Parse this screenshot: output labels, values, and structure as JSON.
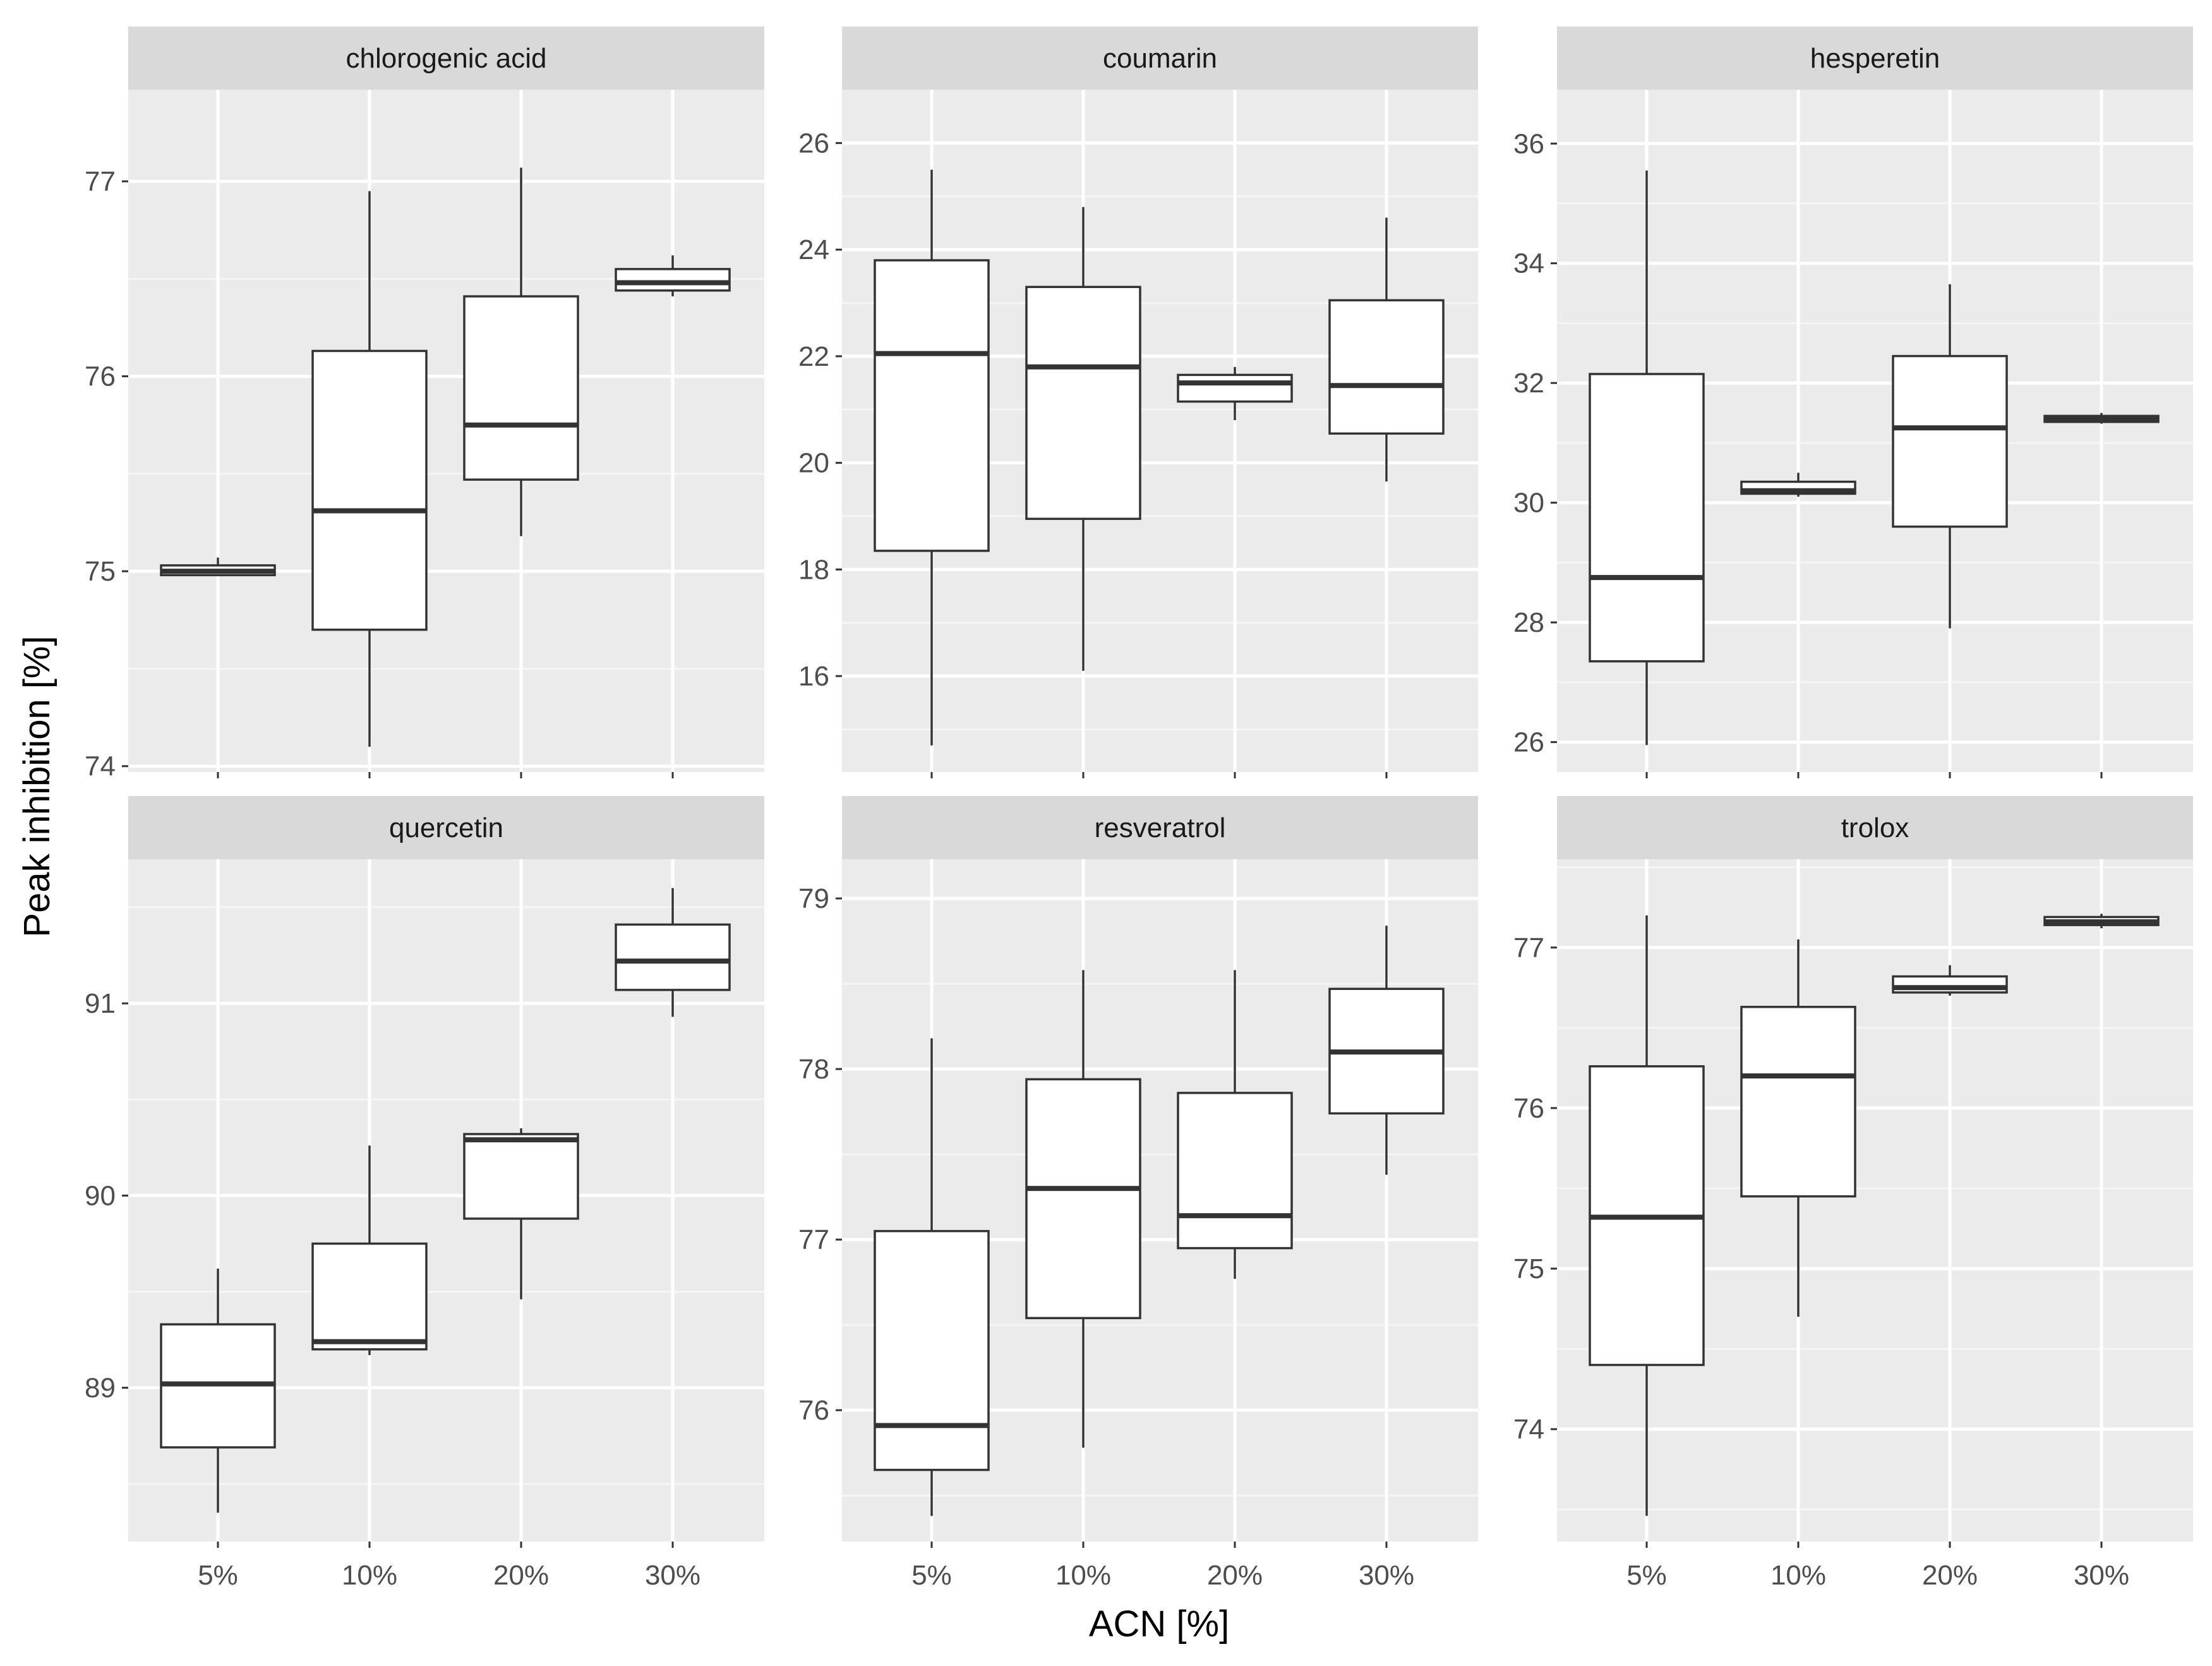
{
  "chart_data": {
    "type": "boxplot",
    "layout": "facet-grid 2x3",
    "xlabel": "ACN [%]",
    "ylabel": "Peak inhibition [%]",
    "categories": [
      "5%",
      "10%",
      "20%",
      "30%"
    ],
    "panels": [
      {
        "name": "chlorogenic acid",
        "ylim": [
          73.97,
          77.47
        ],
        "yticks": [
          74,
          75,
          76,
          77
        ],
        "boxes": [
          {
            "category": "5%",
            "min": 74.98,
            "q1": 74.98,
            "median": 75.0,
            "q3": 75.03,
            "max": 75.07
          },
          {
            "category": "10%",
            "min": 74.1,
            "q1": 74.7,
            "median": 75.31,
            "q3": 76.13,
            "max": 76.95
          },
          {
            "category": "20%",
            "min": 75.18,
            "q1": 75.47,
            "median": 75.75,
            "q3": 76.41,
            "max": 77.07
          },
          {
            "category": "30%",
            "min": 76.41,
            "q1": 76.44,
            "median": 76.48,
            "q3": 76.55,
            "max": 76.62
          }
        ]
      },
      {
        "name": "coumarin",
        "ylim": [
          14.2,
          27.0
        ],
        "yticks": [
          16,
          18,
          20,
          22,
          24,
          26
        ],
        "boxes": [
          {
            "category": "5%",
            "min": 14.7,
            "q1": 18.35,
            "median": 22.05,
            "q3": 23.8,
            "max": 25.5
          },
          {
            "category": "10%",
            "min": 16.1,
            "q1": 18.95,
            "median": 21.8,
            "q3": 23.3,
            "max": 24.8
          },
          {
            "category": "20%",
            "min": 20.8,
            "q1": 21.15,
            "median": 21.5,
            "q3": 21.65,
            "max": 21.8
          },
          {
            "category": "30%",
            "min": 19.65,
            "q1": 20.55,
            "median": 21.45,
            "q3": 23.05,
            "max": 24.6
          }
        ]
      },
      {
        "name": "hesperetin",
        "ylim": [
          25.5,
          36.9
        ],
        "yticks": [
          26,
          28,
          30,
          32,
          34,
          36
        ],
        "boxes": [
          {
            "category": "5%",
            "min": 25.95,
            "q1": 27.35,
            "median": 28.75,
            "q3": 32.15,
            "max": 35.55
          },
          {
            "category": "10%",
            "min": 30.1,
            "q1": 30.15,
            "median": 30.2,
            "q3": 30.35,
            "max": 30.5
          },
          {
            "category": "20%",
            "min": 27.9,
            "q1": 29.6,
            "median": 31.25,
            "q3": 32.45,
            "max": 33.65
          },
          {
            "category": "30%",
            "min": 31.32,
            "q1": 31.35,
            "median": 31.4,
            "q3": 31.45,
            "max": 31.5
          }
        ]
      },
      {
        "name": "quercetin",
        "ylim": [
          88.2,
          91.75
        ],
        "yticks": [
          89,
          90,
          91
        ],
        "boxes": [
          {
            "category": "5%",
            "min": 88.35,
            "q1": 88.69,
            "median": 89.02,
            "q3": 89.33,
            "max": 89.62
          },
          {
            "category": "10%",
            "min": 89.17,
            "q1": 89.2,
            "median": 89.24,
            "q3": 89.75,
            "max": 90.26
          },
          {
            "category": "20%",
            "min": 89.46,
            "q1": 89.88,
            "median": 90.29,
            "q3": 90.32,
            "max": 90.35
          },
          {
            "category": "30%",
            "min": 90.93,
            "q1": 91.07,
            "median": 91.22,
            "q3": 91.41,
            "max": 91.6
          }
        ]
      },
      {
        "name": "resveratrol",
        "ylim": [
          75.23,
          79.23
        ],
        "yticks": [
          76,
          77,
          78,
          79
        ],
        "boxes": [
          {
            "category": "5%",
            "min": 75.38,
            "q1": 75.65,
            "median": 75.91,
            "q3": 77.05,
            "max": 78.18
          },
          {
            "category": "10%",
            "min": 75.78,
            "q1": 76.54,
            "median": 77.3,
            "q3": 77.94,
            "max": 78.58
          },
          {
            "category": "20%",
            "min": 76.77,
            "q1": 76.95,
            "median": 77.14,
            "q3": 77.86,
            "max": 78.58
          },
          {
            "category": "30%",
            "min": 77.38,
            "q1": 77.74,
            "median": 78.1,
            "q3": 78.47,
            "max": 78.84
          }
        ]
      },
      {
        "name": "trolox",
        "ylim": [
          73.3,
          77.55
        ],
        "yticks": [
          74,
          75,
          76,
          77
        ],
        "boxes": [
          {
            "category": "5%",
            "min": 73.46,
            "q1": 74.4,
            "median": 75.32,
            "q3": 76.26,
            "max": 77.2
          },
          {
            "category": "10%",
            "min": 74.7,
            "q1": 75.45,
            "median": 76.2,
            "q3": 76.63,
            "max": 77.05
          },
          {
            "category": "20%",
            "min": 76.7,
            "q1": 76.72,
            "median": 76.75,
            "q3": 76.82,
            "max": 76.89
          },
          {
            "category": "30%",
            "min": 77.12,
            "q1": 77.14,
            "median": 77.16,
            "q3": 77.19,
            "max": 77.21
          }
        ]
      }
    ]
  }
}
